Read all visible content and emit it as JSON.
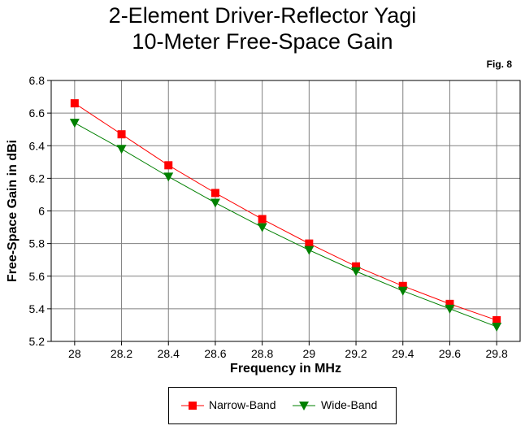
{
  "fig_label": "Fig. 8",
  "colors": {
    "narrow": "#ff0000",
    "wide": "#008000",
    "grid": "#808080",
    "axis": "#000000"
  },
  "chart_data": {
    "type": "line",
    "title": "2-Element Driver-Reflector Yagi",
    "subtitle": "10-Meter Free-Space Gain",
    "xlabel": "Frequency in MHz",
    "ylabel": "Free-Space Gain in dBi",
    "x": [
      28,
      28.2,
      28.4,
      28.6,
      28.8,
      29,
      29.2,
      29.4,
      29.6,
      29.8
    ],
    "x_tick_labels": [
      "28",
      "28.2",
      "28.4",
      "28.6",
      "28.8",
      "29",
      "29.2",
      "29.4",
      "29.6",
      "29.8"
    ],
    "xlim": [
      27.9,
      29.9
    ],
    "ylim": [
      5.2,
      6.8
    ],
    "y_ticks": [
      5.2,
      5.4,
      5.6,
      5.8,
      6,
      6.2,
      6.4,
      6.6,
      6.8
    ],
    "y_tick_labels": [
      "5.2",
      "5.4",
      "5.6",
      "5.8",
      "6",
      "6.2",
      "6.4",
      "6.6",
      "6.8"
    ],
    "grid": true,
    "legend_position": "bottom-center",
    "series": [
      {
        "name": "Narrow-Band",
        "marker": "square",
        "color": "#ff0000",
        "values": [
          6.66,
          6.47,
          6.28,
          6.11,
          5.95,
          5.8,
          5.66,
          5.54,
          5.43,
          5.33
        ]
      },
      {
        "name": "Wide-Band",
        "marker": "triangle-down",
        "color": "#008000",
        "values": [
          6.54,
          6.38,
          6.21,
          6.05,
          5.9,
          5.76,
          5.63,
          5.51,
          5.4,
          5.29
        ]
      }
    ]
  }
}
